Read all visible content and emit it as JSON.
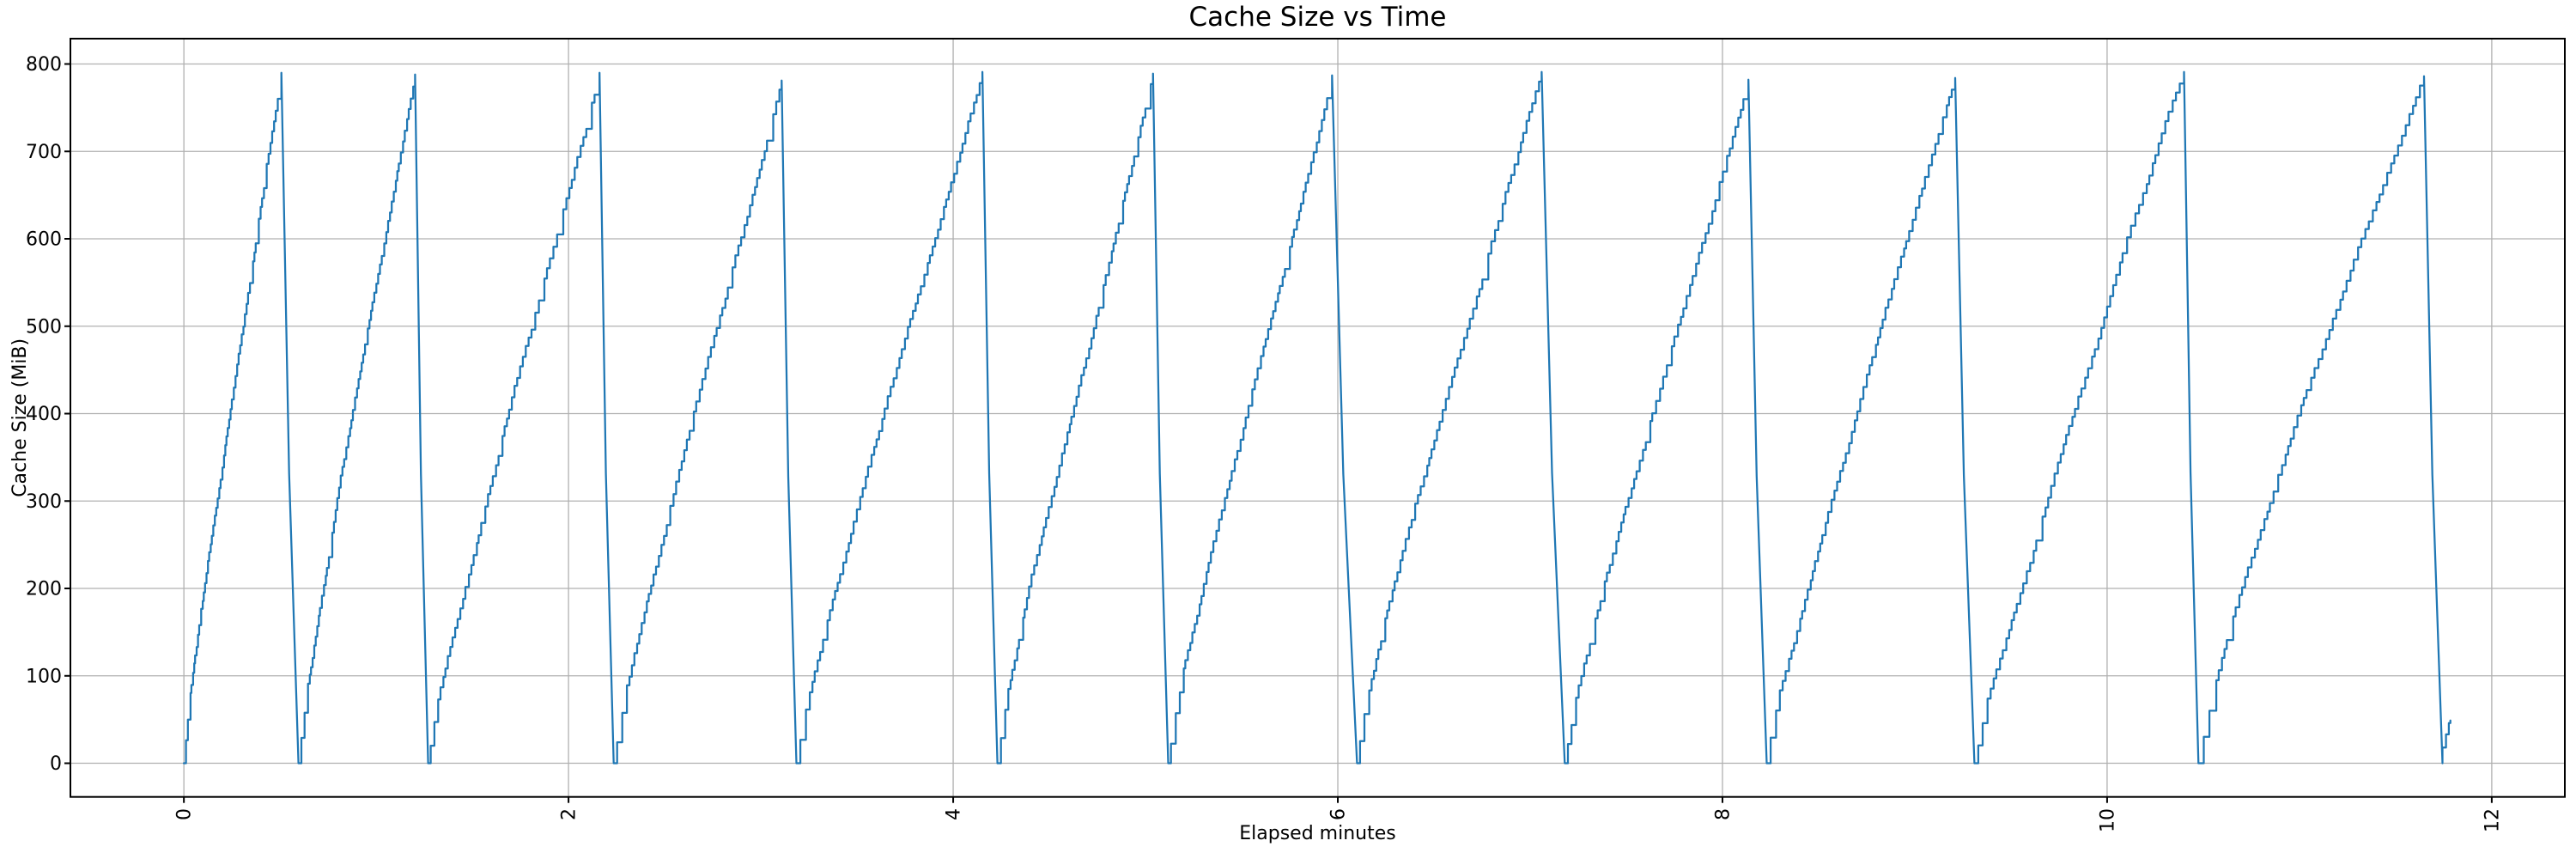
{
  "chart_data": {
    "type": "line",
    "style": "sawtooth-staircase",
    "title": "Cache Size vs Time",
    "xlabel": "Elapsed minutes",
    "ylabel": "Cache Size (MiB)",
    "xlim": [
      -0.59,
      12.38
    ],
    "ylim": [
      -38.5,
      829.0
    ],
    "xticks": [
      0,
      2,
      4,
      6,
      8,
      10,
      12
    ],
    "xtick_labels": [
      "0",
      "2",
      "4",
      "6",
      "8",
      "10",
      "12"
    ],
    "yticks": [
      0,
      100,
      200,
      300,
      400,
      500,
      600,
      700,
      800
    ],
    "ytick_labels": [
      "0",
      "100",
      "200",
      "300",
      "400",
      "500",
      "600",
      "700",
      "800"
    ],
    "grid": true,
    "legend": null,
    "line_color": "#1f77b4",
    "grid_color": "#b0b0b0",
    "spine_color": "#000000",
    "text_color": "#000000",
    "step_mib": 10,
    "cycles": [
      {
        "start_min": 0.0,
        "peak_min": 0.507,
        "peak_mib": 790,
        "drop_end_min": 0.596
      },
      {
        "start_min": 0.596,
        "peak_min": 1.202,
        "peak_mib": 788,
        "drop_end_min": 1.27
      },
      {
        "start_min": 1.27,
        "peak_min": 2.161,
        "peak_mib": 790,
        "drop_end_min": 2.235
      },
      {
        "start_min": 2.235,
        "peak_min": 3.108,
        "peak_mib": 781,
        "drop_end_min": 3.185
      },
      {
        "start_min": 3.185,
        "peak_min": 4.152,
        "peak_mib": 791,
        "drop_end_min": 4.23
      },
      {
        "start_min": 4.23,
        "peak_min": 5.039,
        "peak_mib": 789,
        "drop_end_min": 5.118
      },
      {
        "start_min": 5.118,
        "peak_min": 5.97,
        "peak_mib": 787,
        "drop_end_min": 6.1
      },
      {
        "start_min": 6.1,
        "peak_min": 7.06,
        "peak_mib": 791,
        "drop_end_min": 7.18
      },
      {
        "start_min": 7.18,
        "peak_min": 8.135,
        "peak_mib": 782,
        "drop_end_min": 8.23
      },
      {
        "start_min": 8.23,
        "peak_min": 9.21,
        "peak_mib": 784,
        "drop_end_min": 9.31
      },
      {
        "start_min": 9.31,
        "peak_min": 10.4,
        "peak_mib": 791,
        "drop_end_min": 10.475
      },
      {
        "start_min": 10.475,
        "peak_min": 11.648,
        "peak_mib": 786,
        "drop_end_min": 11.744
      }
    ],
    "tail_points": [
      [
        11.744,
        0
      ],
      [
        11.744,
        18
      ],
      [
        11.762,
        18
      ],
      [
        11.762,
        33
      ],
      [
        11.777,
        33
      ],
      [
        11.777,
        46
      ],
      [
        11.785,
        46
      ],
      [
        11.785,
        49
      ]
    ]
  }
}
